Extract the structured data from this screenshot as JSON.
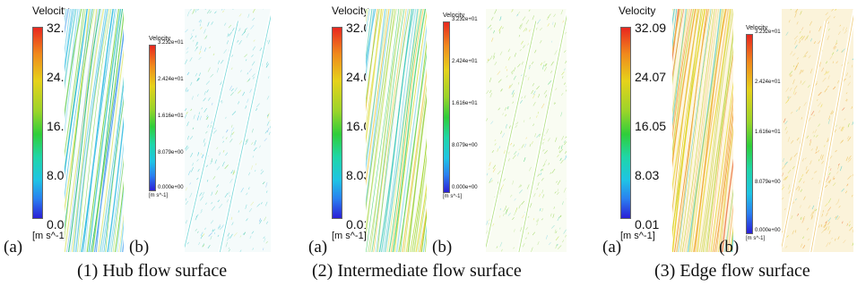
{
  "groups": [
    {
      "caption": "(1) Hub flow surface",
      "a": {
        "label": "(a)",
        "title": "Velocity",
        "ticks": [
          "32.09",
          "24.07",
          "16.05",
          "8.03",
          "0.01"
        ],
        "unit": "[m s^-1]"
      },
      "b": {
        "label": "(b)",
        "title": "Velocity",
        "ticks": [
          "3.232e+01",
          "2.424e+01",
          "1.616e+01",
          "8.079e+00",
          "0.000e+00"
        ],
        "unit": "[m s^-1]"
      },
      "style": {
        "a_bg": "#fbfdfb",
        "b_bg": "#f5fbfb",
        "dominant": "#3ec7c8"
      }
    },
    {
      "caption": "(2) Intermediate flow surface",
      "a": {
        "label": "(a)",
        "title": "Velocity",
        "ticks": [
          "32.09",
          "24.07",
          "16.05",
          "8.03",
          "0.01"
        ],
        "unit": "[m s^-1]"
      },
      "b": {
        "label": "(b)",
        "title": "Velocity",
        "ticks": [
          "3.232e+01",
          "2.424e+01",
          "1.616e+01",
          "8.079e+00",
          "0.000e+00"
        ],
        "unit": "[m s^-1]"
      },
      "style": {
        "a_bg": "#fbfdf8",
        "b_bg": "#f9fcf2",
        "dominant": "#8fd24a"
      }
    },
    {
      "caption": "(3) Edge flow surface",
      "a": {
        "label": "(a)",
        "title": "Velocity",
        "ticks": [
          "32.09",
          "24.07",
          "16.05",
          "8.03",
          "0.01"
        ],
        "unit": "[m s^-1]"
      },
      "b": {
        "label": "(b)",
        "title": "Velocity",
        "ticks": [
          "3.232e+01",
          "2.424e+01",
          "1.616e+01",
          "8.079e+00",
          "0.000e+00"
        ],
        "unit": "[m s^-1]"
      },
      "style": {
        "a_bg": "#fdf6e2",
        "b_bg": "#fbf3da",
        "dominant": "#e9b640"
      }
    }
  ]
}
